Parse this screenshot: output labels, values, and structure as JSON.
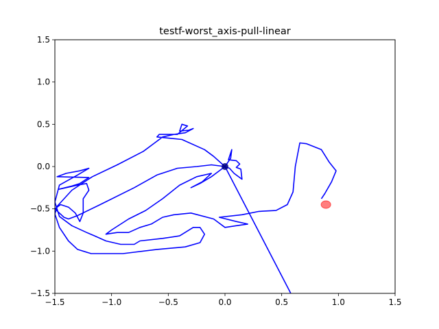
{
  "chart_data": {
    "type": "line",
    "title": "testf-worst_axis-pull-linear",
    "xlabel": "",
    "ylabel": "",
    "xlim": [
      -1.5,
      1.5
    ],
    "ylim": [
      -1.5,
      1.5
    ],
    "xticks": [
      -1.5,
      -1.0,
      -0.5,
      0.0,
      0.5,
      1.0,
      1.5
    ],
    "yticks": [
      -1.5,
      -1.0,
      -0.5,
      0.0,
      0.5,
      1.0,
      1.5
    ],
    "xtick_labels": [
      "−1.5",
      "−1.0",
      "−0.5",
      "0.0",
      "0.5",
      "1.0",
      "1.5"
    ],
    "ytick_labels": [
      "−1.5",
      "−1.0",
      "−0.5",
      "0.0",
      "0.5",
      "1.0",
      "1.5"
    ],
    "grid": false,
    "colors": {
      "trajectory": "#0000ff",
      "start_marker": "#000080",
      "target_marker": "#ff0000"
    },
    "start_point": {
      "x": 0.0,
      "y": 0.0
    },
    "target_point": {
      "x": 0.89,
      "y": -0.45
    },
    "series": [
      {
        "points": [
          [
            0.0,
            0.0
          ],
          [
            0.05,
            0.1
          ],
          [
            0.06,
            0.2
          ],
          [
            0.03,
            0.08
          ],
          [
            0.1,
            0.07
          ],
          [
            0.13,
            0.03
          ],
          [
            0.1,
            -0.01
          ],
          [
            0.14,
            -0.03
          ],
          [
            0.15,
            -0.15
          ],
          [
            0.08,
            -0.08
          ],
          [
            0.04,
            -0.02
          ],
          [
            0.0,
            0.0
          ],
          [
            -0.1,
            0.12
          ],
          [
            -0.18,
            0.2
          ],
          [
            -0.38,
            0.32
          ],
          [
            -0.6,
            0.35
          ],
          [
            -0.58,
            0.38
          ],
          [
            -0.42,
            0.38
          ],
          [
            -0.33,
            0.48
          ],
          [
            -0.38,
            0.5
          ],
          [
            -0.4,
            0.42
          ],
          [
            -0.32,
            0.43
          ],
          [
            -0.28,
            0.45
          ],
          [
            -0.35,
            0.4
          ],
          [
            -0.45,
            0.38
          ],
          [
            -0.55,
            0.35
          ],
          [
            -0.62,
            0.28
          ],
          [
            -0.72,
            0.18
          ],
          [
            -0.95,
            0.02
          ],
          [
            -1.17,
            -0.12
          ],
          [
            -1.35,
            -0.28
          ],
          [
            -1.48,
            -0.47
          ],
          [
            -1.5,
            -0.56
          ],
          [
            -1.46,
            -0.72
          ],
          [
            -1.38,
            -0.88
          ],
          [
            -1.3,
            -0.98
          ],
          [
            -1.18,
            -1.03
          ],
          [
            -0.9,
            -1.03
          ],
          [
            -0.6,
            -0.98
          ],
          [
            -0.35,
            -0.95
          ],
          [
            -0.22,
            -0.9
          ],
          [
            -0.18,
            -0.8
          ],
          [
            -0.22,
            -0.72
          ],
          [
            -0.28,
            -0.72
          ],
          [
            -0.4,
            -0.82
          ],
          [
            -0.55,
            -0.85
          ],
          [
            -0.75,
            -0.88
          ],
          [
            -0.8,
            -0.92
          ],
          [
            -0.92,
            -0.92
          ],
          [
            -1.05,
            -0.88
          ],
          [
            -1.15,
            -0.82
          ],
          [
            -1.22,
            -0.78
          ],
          [
            -1.35,
            -0.7
          ],
          [
            -1.46,
            -0.59
          ],
          [
            -1.5,
            -0.42
          ],
          [
            -1.46,
            -0.22
          ],
          [
            -1.3,
            -0.1
          ],
          [
            -1.2,
            -0.02
          ],
          [
            -1.28,
            -0.05
          ],
          [
            -1.4,
            -0.08
          ],
          [
            -1.48,
            -0.12
          ],
          [
            -1.2,
            -0.13
          ],
          [
            -1.28,
            -0.2
          ],
          [
            -1.35,
            -0.23
          ],
          [
            -1.47,
            -0.27
          ],
          [
            -1.3,
            -0.22
          ],
          [
            -1.22,
            -0.2
          ],
          [
            -1.2,
            -0.28
          ],
          [
            -1.25,
            -0.38
          ],
          [
            -1.25,
            -0.55
          ],
          [
            -1.28,
            -0.65
          ],
          [
            -1.32,
            -0.55
          ],
          [
            -1.38,
            -0.48
          ],
          [
            -1.45,
            -0.45
          ],
          [
            -1.5,
            -0.5
          ],
          [
            -1.42,
            -0.6
          ],
          [
            -1.38,
            -0.62
          ],
          [
            -1.3,
            -0.58
          ],
          [
            -1.1,
            -0.45
          ],
          [
            -0.8,
            -0.25
          ],
          [
            -0.6,
            -0.1
          ],
          [
            -0.42,
            -0.02
          ],
          [
            -0.25,
            0.0
          ],
          [
            -0.12,
            0.02
          ],
          [
            0.0,
            0.0
          ],
          [
            -0.12,
            -0.12
          ],
          [
            -0.22,
            -0.2
          ],
          [
            -0.3,
            -0.25
          ],
          [
            -0.2,
            -0.18
          ],
          [
            -0.12,
            -0.08
          ],
          [
            -0.25,
            -0.12
          ],
          [
            -0.4,
            -0.22
          ],
          [
            -0.55,
            -0.38
          ],
          [
            -0.7,
            -0.52
          ],
          [
            -0.85,
            -0.62
          ],
          [
            -1.0,
            -0.75
          ],
          [
            -1.05,
            -0.8
          ],
          [
            -0.95,
            -0.78
          ],
          [
            -0.85,
            -0.78
          ],
          [
            -0.75,
            -0.72
          ],
          [
            -0.65,
            -0.68
          ],
          [
            -0.55,
            -0.6
          ],
          [
            -0.45,
            -0.57
          ],
          [
            -0.3,
            -0.55
          ],
          [
            -0.1,
            -0.62
          ],
          [
            0.0,
            -0.72
          ],
          [
            0.1,
            -0.7
          ],
          [
            0.2,
            -0.68
          ],
          [
            0.1,
            -0.65
          ],
          [
            -0.05,
            -0.6
          ],
          [
            0.15,
            -0.57
          ],
          [
            0.3,
            -0.53
          ],
          [
            0.45,
            -0.52
          ],
          [
            0.55,
            -0.45
          ],
          [
            0.6,
            -0.3
          ],
          [
            0.62,
            0.0
          ],
          [
            0.66,
            0.28
          ],
          [
            0.72,
            0.27
          ],
          [
            0.85,
            0.2
          ],
          [
            0.92,
            0.05
          ],
          [
            0.98,
            -0.05
          ],
          [
            0.94,
            -0.18
          ],
          [
            0.88,
            -0.32
          ],
          [
            0.85,
            -0.38
          ]
        ]
      },
      {
        "points": [
          [
            0.0,
            0.0
          ],
          [
            0.58,
            -1.5
          ]
        ]
      }
    ]
  }
}
